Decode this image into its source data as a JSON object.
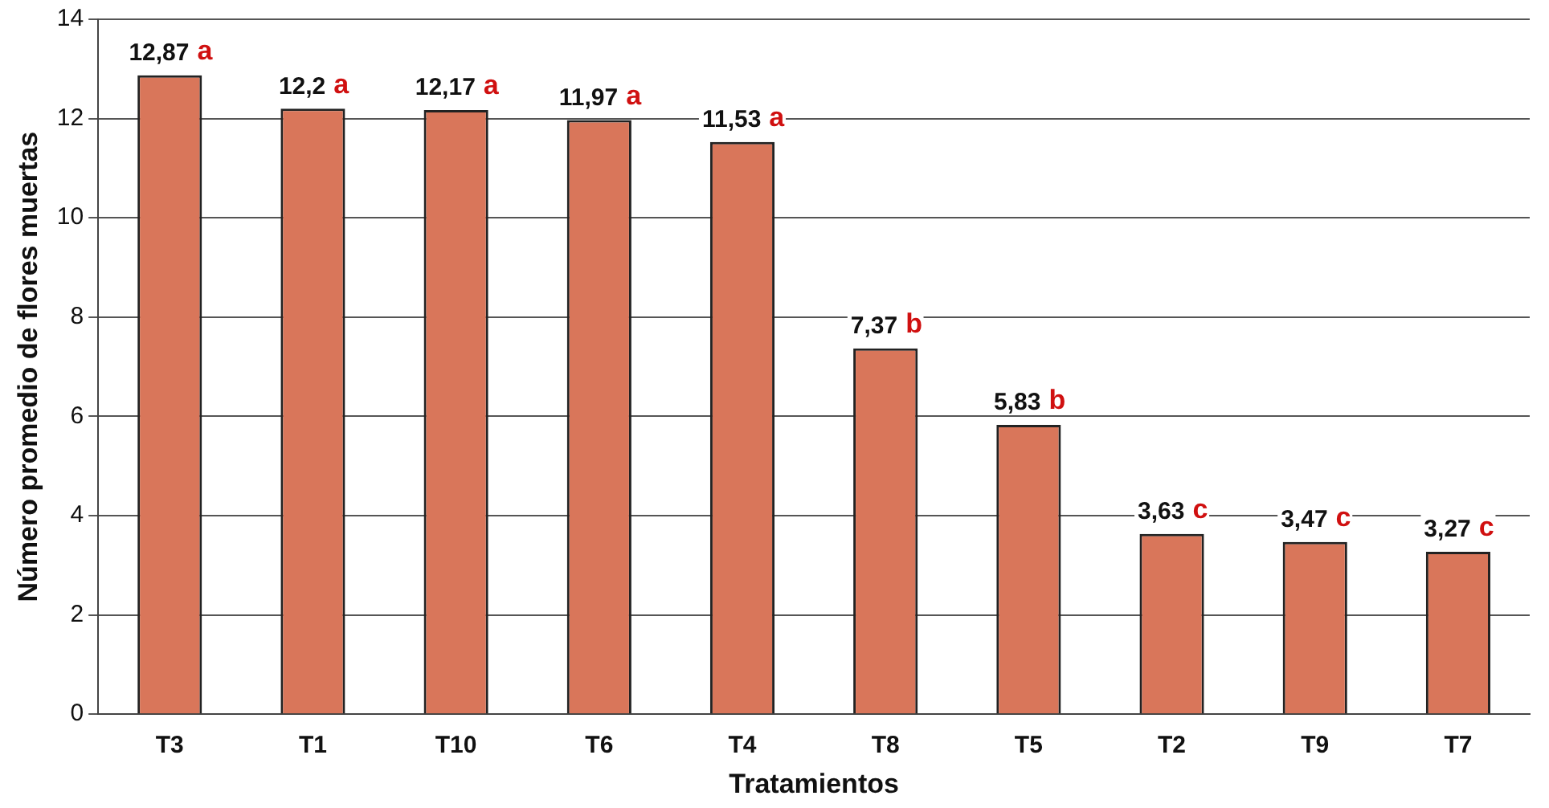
{
  "chart_data": {
    "type": "bar",
    "xlabel": "Tratamientos",
    "ylabel": "Número promedio de flores muertas",
    "categories": [
      "T3",
      "T1",
      "T10",
      "T6",
      "T4",
      "T8",
      "T5",
      "T2",
      "T9",
      "T7"
    ],
    "values": [
      12.87,
      12.2,
      12.17,
      11.97,
      11.53,
      7.37,
      5.83,
      3.63,
      3.47,
      3.27
    ],
    "value_labels": [
      "12,87",
      "12,2",
      "12,17",
      "11,97",
      "11,53",
      "7,37",
      "5,83",
      "3,63",
      "3,47",
      "3,27"
    ],
    "color": "#d9765a",
    "annotations": [
      {
        "text": "a",
        "x": "T3",
        "y": 12.87
      },
      {
        "text": "a",
        "x": "T1",
        "y": 12.2
      },
      {
        "text": "a",
        "x": "T10",
        "y": 12.17
      },
      {
        "text": "a",
        "x": "T6",
        "y": 11.97
      },
      {
        "text": "a",
        "x": "T4",
        "y": 11.53
      },
      {
        "text": "b",
        "x": "T8",
        "y": 7.37
      },
      {
        "text": "b",
        "x": "T5",
        "y": 5.83
      },
      {
        "text": "c",
        "x": "T2",
        "y": 3.63
      },
      {
        "text": "c",
        "x": "T9",
        "y": 3.47
      },
      {
        "text": "c",
        "x": "T7",
        "y": 3.27
      }
    ],
    "ylim": [
      0,
      14
    ],
    "yticks": [
      0,
      2,
      4,
      6,
      8,
      10,
      12,
      14
    ],
    "grid": "y",
    "legend": false
  }
}
